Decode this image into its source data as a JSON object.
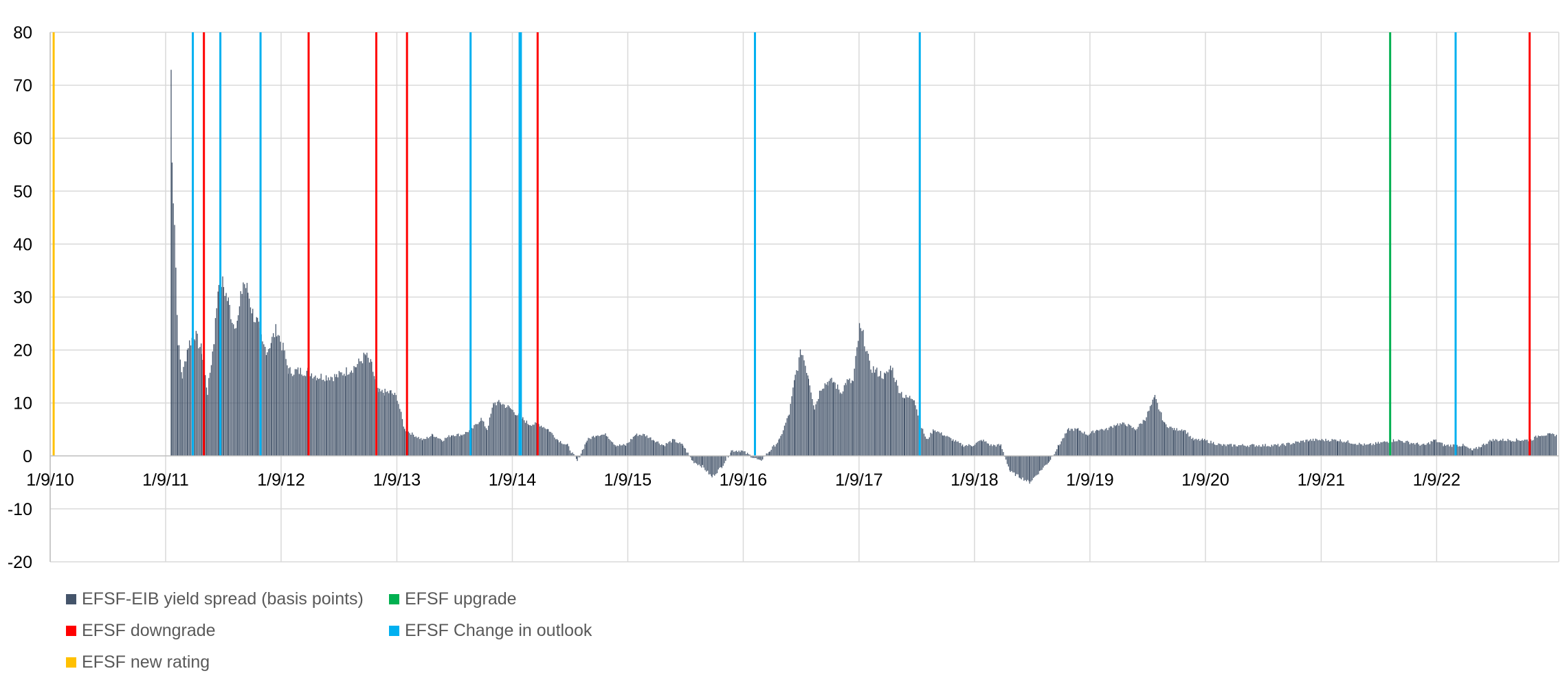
{
  "chart_data": {
    "type": "bar",
    "title": "",
    "xlabel": "",
    "ylabel": "",
    "ylim": [
      -20,
      80
    ],
    "yticks": [
      "80",
      "70",
      "60",
      "50",
      "40",
      "30",
      "20",
      "10",
      "0",
      "-10",
      "-20"
    ],
    "ytick_values": [
      80,
      70,
      60,
      50,
      40,
      30,
      20,
      10,
      0,
      -10,
      -20
    ],
    "xlim": [
      "2010-01-09",
      "2023-01-30"
    ],
    "xticks": [
      "1/9/10",
      "1/9/11",
      "1/9/12",
      "1/9/13",
      "1/9/14",
      "1/9/15",
      "1/9/16",
      "1/9/17",
      "1/9/18",
      "1/9/19",
      "1/9/20",
      "1/9/21",
      "1/9/22"
    ],
    "xtick_dates": [
      "2010-01-09",
      "2011-01-09",
      "2012-01-09",
      "2013-01-09",
      "2014-01-09",
      "2015-01-09",
      "2016-01-09",
      "2017-01-09",
      "2018-01-09",
      "2019-01-09",
      "2020-01-09",
      "2021-01-09",
      "2022-01-09"
    ],
    "grid": true,
    "legend_position": "bottom-left",
    "series": [
      {
        "name": "EFSF-EIB yield spread (basis points)",
        "color": "#44546A",
        "points": [
          [
            "2011-01-25",
            73
          ],
          [
            "2011-01-28",
            55
          ],
          [
            "2011-02-05",
            45
          ],
          [
            "2011-02-15",
            22
          ],
          [
            "2011-03-01",
            15
          ],
          [
            "2011-03-20",
            21
          ],
          [
            "2011-04-10",
            23
          ],
          [
            "2011-05-01",
            20
          ],
          [
            "2011-05-20",
            12
          ],
          [
            "2011-06-10",
            22
          ],
          [
            "2011-06-25",
            34
          ],
          [
            "2011-07-10",
            32
          ],
          [
            "2011-07-25",
            29
          ],
          [
            "2011-08-10",
            25
          ],
          [
            "2011-08-25",
            26
          ],
          [
            "2011-09-10",
            33
          ],
          [
            "2011-09-25",
            31
          ],
          [
            "2011-10-10",
            27
          ],
          [
            "2011-10-25",
            25
          ],
          [
            "2011-11-10",
            21
          ],
          [
            "2011-11-25",
            20
          ],
          [
            "2011-12-10",
            22
          ],
          [
            "2011-12-25",
            24
          ],
          [
            "2012-01-15",
            20
          ],
          [
            "2012-02-01",
            16
          ],
          [
            "2012-03-01",
            16
          ],
          [
            "2012-04-01",
            16
          ],
          [
            "2012-05-01",
            15
          ],
          [
            "2012-06-01",
            15
          ],
          [
            "2012-07-01",
            15
          ],
          [
            "2012-08-01",
            16
          ],
          [
            "2012-09-01",
            17
          ],
          [
            "2012-10-01",
            19
          ],
          [
            "2012-10-20",
            17
          ],
          [
            "2012-11-10",
            12
          ],
          [
            "2012-12-01",
            12
          ],
          [
            "2012-12-20",
            12
          ],
          [
            "2013-01-09",
            11
          ],
          [
            "2013-02-01",
            5
          ],
          [
            "2013-03-01",
            4
          ],
          [
            "2013-04-01",
            3
          ],
          [
            "2013-05-01",
            4
          ],
          [
            "2013-06-01",
            3
          ],
          [
            "2013-07-01",
            4
          ],
          [
            "2013-08-01",
            4
          ],
          [
            "2013-09-01",
            5
          ],
          [
            "2013-10-01",
            7
          ],
          [
            "2013-10-20",
            5
          ],
          [
            "2013-11-10",
            10
          ],
          [
            "2013-12-01",
            10
          ],
          [
            "2014-01-01",
            9
          ],
          [
            "2014-01-20",
            8
          ],
          [
            "2014-02-10",
            7
          ],
          [
            "2014-03-01",
            6
          ],
          [
            "2014-04-01",
            6
          ],
          [
            "2014-05-01",
            5
          ],
          [
            "2014-06-01",
            3
          ],
          [
            "2014-07-01",
            2
          ],
          [
            "2014-08-01",
            -1
          ],
          [
            "2014-09-01",
            3
          ],
          [
            "2014-10-01",
            4
          ],
          [
            "2014-11-01",
            4
          ],
          [
            "2014-12-01",
            2
          ],
          [
            "2015-01-01",
            2
          ],
          [
            "2015-02-01",
            4
          ],
          [
            "2015-03-01",
            4
          ],
          [
            "2015-04-01",
            3
          ],
          [
            "2015-05-01",
            2
          ],
          [
            "2015-06-01",
            3
          ],
          [
            "2015-07-01",
            2
          ],
          [
            "2015-08-01",
            -1
          ],
          [
            "2015-09-01",
            -2
          ],
          [
            "2015-10-01",
            -4
          ],
          [
            "2015-11-01",
            -2
          ],
          [
            "2015-12-01",
            1
          ],
          [
            "2016-01-01",
            1
          ],
          [
            "2016-02-01",
            0
          ],
          [
            "2016-03-01",
            -1
          ],
          [
            "2016-04-01",
            1
          ],
          [
            "2016-05-01",
            3
          ],
          [
            "2016-06-01",
            8
          ],
          [
            "2016-06-20",
            15
          ],
          [
            "2016-07-10",
            20
          ],
          [
            "2016-08-01",
            15
          ],
          [
            "2016-08-20",
            9
          ],
          [
            "2016-09-10",
            13
          ],
          [
            "2016-10-01",
            14
          ],
          [
            "2016-10-20",
            14
          ],
          [
            "2016-11-10",
            12
          ],
          [
            "2016-12-01",
            14
          ],
          [
            "2016-12-20",
            14
          ],
          [
            "2017-01-09",
            24
          ],
          [
            "2017-01-25",
            22
          ],
          [
            "2017-02-10",
            17
          ],
          [
            "2017-03-01",
            16
          ],
          [
            "2017-04-01",
            15
          ],
          [
            "2017-04-20",
            17
          ],
          [
            "2017-05-10",
            13
          ],
          [
            "2017-06-01",
            11
          ],
          [
            "2017-07-01",
            11
          ],
          [
            "2017-07-20",
            6
          ],
          [
            "2017-08-10",
            3
          ],
          [
            "2017-09-01",
            5
          ],
          [
            "2017-10-01",
            4
          ],
          [
            "2017-11-01",
            3
          ],
          [
            "2017-12-01",
            2
          ],
          [
            "2018-01-01",
            2
          ],
          [
            "2018-02-01",
            3
          ],
          [
            "2018-03-01",
            2
          ],
          [
            "2018-04-01",
            2
          ],
          [
            "2018-05-01",
            -3
          ],
          [
            "2018-06-01",
            -4
          ],
          [
            "2018-07-01",
            -5
          ],
          [
            "2018-08-01",
            -3
          ],
          [
            "2018-09-01",
            -1
          ],
          [
            "2018-10-01",
            2
          ],
          [
            "2018-11-01",
            5
          ],
          [
            "2018-12-01",
            5
          ],
          [
            "2019-01-01",
            4
          ],
          [
            "2019-02-01",
            5
          ],
          [
            "2019-03-01",
            5
          ],
          [
            "2019-04-01",
            6
          ],
          [
            "2019-05-01",
            6
          ],
          [
            "2019-06-01",
            5
          ],
          [
            "2019-07-01",
            7
          ],
          [
            "2019-08-01",
            11
          ],
          [
            "2019-09-01",
            6
          ],
          [
            "2019-10-01",
            5
          ],
          [
            "2019-11-01",
            5
          ],
          [
            "2019-12-01",
            3
          ],
          [
            "2020-01-01",
            3
          ],
          [
            "2020-03-01",
            2
          ],
          [
            "2020-06-01",
            2
          ],
          [
            "2020-09-01",
            2
          ],
          [
            "2020-12-01",
            3
          ],
          [
            "2021-03-01",
            3
          ],
          [
            "2021-06-01",
            2
          ],
          [
            "2021-09-01",
            3
          ],
          [
            "2021-12-01",
            2
          ],
          [
            "2022-01-01",
            3
          ],
          [
            "2022-02-01",
            2
          ],
          [
            "2022-03-01",
            2
          ],
          [
            "2022-04-01",
            2
          ],
          [
            "2022-05-01",
            1
          ],
          [
            "2022-06-01",
            2
          ],
          [
            "2022-07-01",
            3
          ],
          [
            "2022-08-01",
            3
          ],
          [
            "2022-09-01",
            3
          ],
          [
            "2022-10-01",
            3
          ],
          [
            "2022-11-01",
            3
          ],
          [
            "2022-12-01",
            4
          ],
          [
            "2023-01-01",
            4
          ],
          [
            "2023-01-25",
            4
          ]
        ]
      }
    ],
    "events": [
      {
        "name": "EFSF new rating",
        "color": "#FFC000",
        "dates": [
          "2010-01-20"
        ]
      },
      {
        "name": "EFSF downgrade",
        "color": "#FF0000",
        "dates": [
          "2011-05-10",
          "2012-04-05",
          "2012-11-05",
          "2013-02-10",
          "2014-03-30",
          "2022-10-30"
        ]
      },
      {
        "name": "EFSF upgrade",
        "color": "#00B050",
        "dates": [
          "2021-08-15"
        ]
      },
      {
        "name": "EFSF Change in outlook",
        "color": "#00B0F0",
        "dates": [
          "2011-04-05",
          "2011-07-01",
          "2011-11-05",
          "2013-08-30",
          "2014-02-01",
          "2014-02-05",
          "2016-02-15",
          "2017-07-20",
          "2022-03-10"
        ]
      }
    ]
  },
  "legend": {
    "items": [
      {
        "label": "EFSF-EIB yield spread (basis points)",
        "color": "#44546A"
      },
      {
        "label": "EFSF upgrade",
        "color": "#00B050"
      },
      {
        "label": "EFSF downgrade",
        "color": "#FF0000"
      },
      {
        "label": "EFSF Change in outlook",
        "color": "#00B0F0"
      },
      {
        "label": "EFSF new rating",
        "color": "#FFC000"
      }
    ]
  }
}
